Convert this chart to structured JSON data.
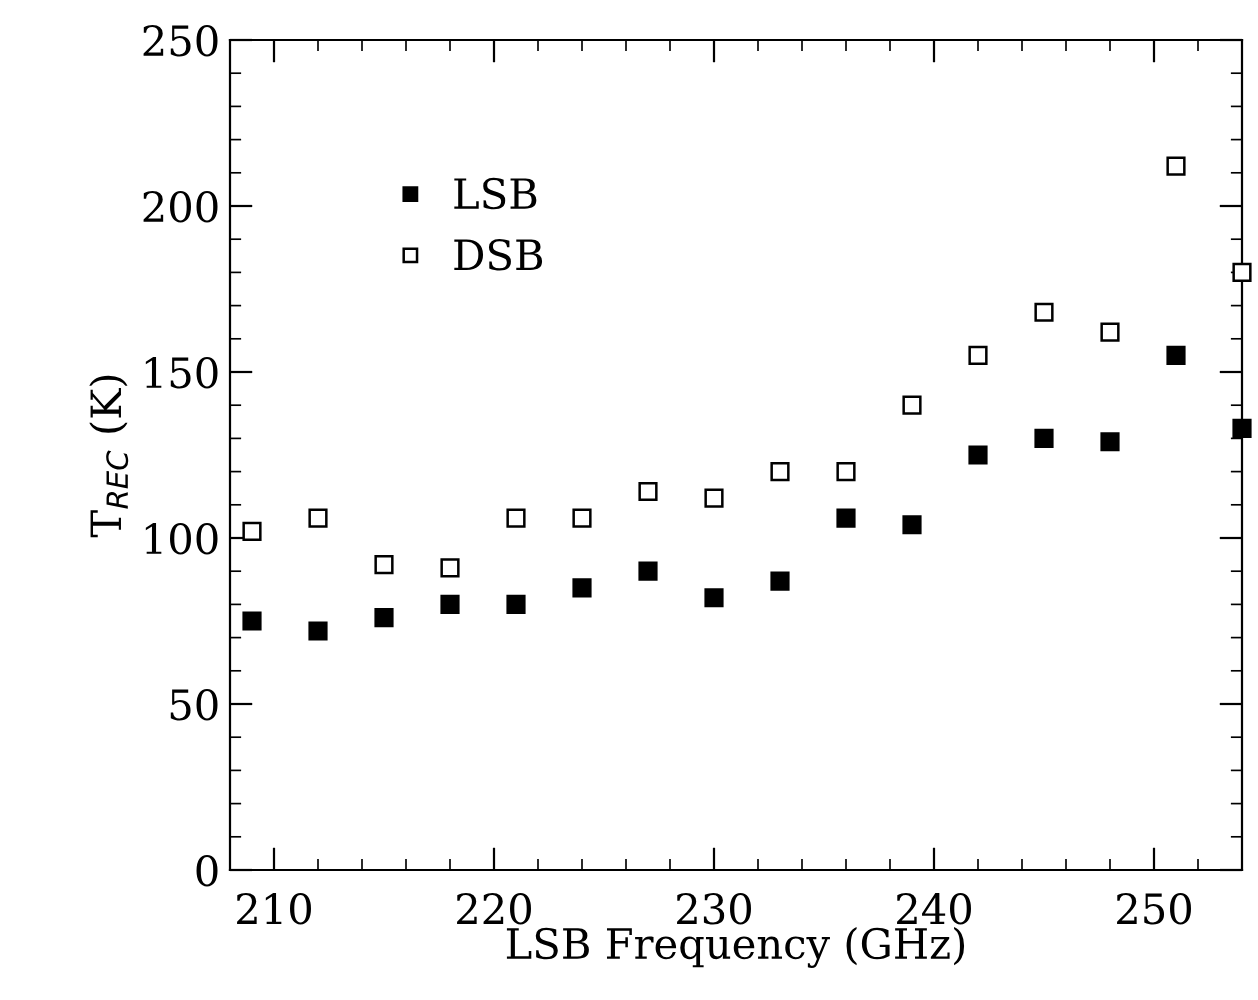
{
  "chart_data": {
    "type": "scatter",
    "xlabel": "LSB Frequency (GHz)",
    "ylabel": "T$_{REC}$ (K)",
    "x": [
      209,
      212,
      215,
      218,
      221,
      224,
      227,
      230,
      233,
      236,
      239,
      242,
      245,
      248,
      251,
      254
    ],
    "series": [
      {
        "name": "LSB",
        "color": "#000000",
        "values": [
          75,
          72,
          76,
          80,
          80,
          85,
          90,
          82,
          87,
          106,
          104,
          125,
          130,
          129,
          155,
          133
        ]
      },
      {
        "name": "DSB",
        "color": "#000000",
        "values": [
          102,
          106,
          92,
          91,
          106,
          106,
          114,
          112,
          120,
          120,
          140,
          155,
          168,
          162,
          212,
          180
        ]
      }
    ],
    "marker": "square",
    "xlim": [
      208,
      254
    ],
    "ylim": [
      0,
      250
    ],
    "xticks": [
      210,
      220,
      230,
      240,
      250
    ],
    "yticks": [
      0,
      50,
      100,
      150,
      200,
      250
    ],
    "grid": false,
    "legend": "top left"
  }
}
